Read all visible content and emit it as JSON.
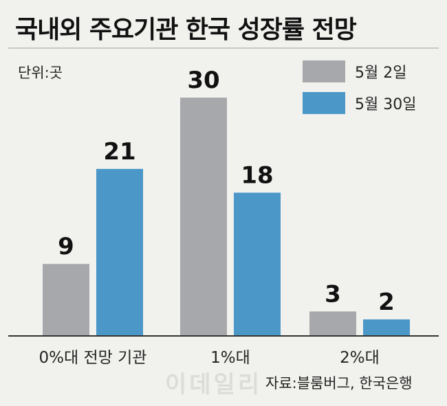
{
  "title": "국내외 주요기관 한국 성장률 전망",
  "unit": "단위:곳",
  "source": "자료:블룸버그, 한국은행",
  "watermark": "이데일리",
  "chart_data": {
    "type": "bar",
    "categories": [
      "0%대 전망 기관",
      "1%대",
      "2%대"
    ],
    "series": [
      {
        "name": "5월 2일",
        "values": [
          9,
          30,
          3
        ],
        "color": "#a7a8ac"
      },
      {
        "name": "5월 30일",
        "values": [
          21,
          18,
          2
        ],
        "color": "#4a97c8"
      }
    ],
    "ylim": [
      0,
      34
    ],
    "grid": false,
    "legend_position": "top-right",
    "data_labels": true
  }
}
